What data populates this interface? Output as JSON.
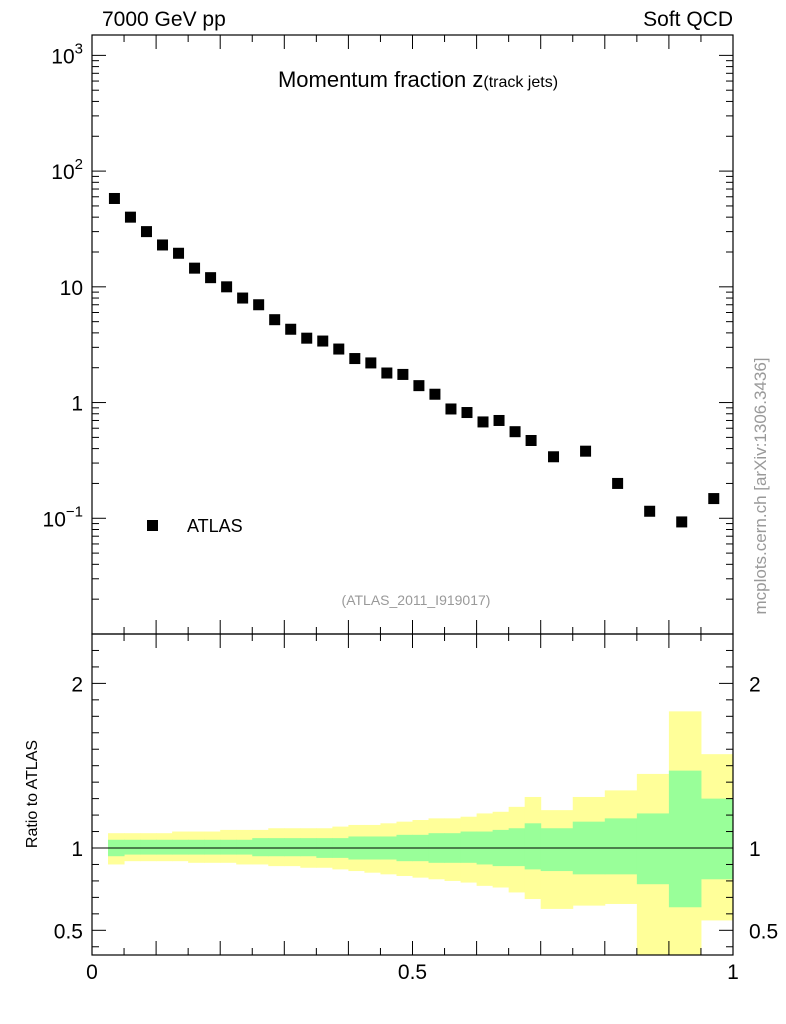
{
  "header": {
    "energy": "7000 GeV pp",
    "process": "Soft QCD"
  },
  "side_label": "mcplots.cern.ch [arXiv:1306.3436]",
  "chart_data": [
    {
      "type": "scatter",
      "title": "Momentum fraction z",
      "title_sub": "(track jets)",
      "yscale": "log",
      "xlim": [
        0,
        1
      ],
      "ylim": [
        0.01,
        1500
      ],
      "y_tick_labels": [
        {
          "value": 1000,
          "base": "10",
          "exp": "3"
        },
        {
          "value": 100,
          "base": "10",
          "exp": "2"
        },
        {
          "value": 10,
          "label": "10"
        },
        {
          "value": 1,
          "label": "1"
        },
        {
          "value": 0.1,
          "base": "10",
          "exp": "−1"
        }
      ],
      "legend": [
        {
          "name": "ATLAS",
          "marker": "square"
        }
      ],
      "legend_position": "bottom-left",
      "analysis_tag": "(ATLAS_2011_I919017)",
      "series": [
        {
          "name": "ATLAS",
          "x": [
            0.035,
            0.06,
            0.085,
            0.11,
            0.135,
            0.16,
            0.185,
            0.21,
            0.235,
            0.26,
            0.285,
            0.31,
            0.335,
            0.36,
            0.385,
            0.41,
            0.435,
            0.46,
            0.485,
            0.51,
            0.535,
            0.56,
            0.585,
            0.61,
            0.635,
            0.66,
            0.685,
            0.72,
            0.77,
            0.82,
            0.87,
            0.92,
            0.97
          ],
          "y": [
            58,
            40,
            30,
            23,
            19.5,
            14.5,
            12,
            10,
            8,
            7,
            5.2,
            4.3,
            3.6,
            3.4,
            2.9,
            2.4,
            2.2,
            1.8,
            1.75,
            1.4,
            1.18,
            0.88,
            0.82,
            0.68,
            0.7,
            0.56,
            0.47,
            0.34,
            0.38,
            0.2,
            0.115,
            0.093,
            0.148
          ]
        }
      ]
    },
    {
      "type": "area",
      "ylabel": "Ratio to ATLAS",
      "xlim": [
        0,
        1
      ],
      "ylim": [
        0.35,
        2.3
      ],
      "x_tick_labels": [
        {
          "value": 0,
          "label": "0"
        },
        {
          "value": 0.5,
          "label": "0.5"
        },
        {
          "value": 1,
          "label": "1"
        }
      ],
      "y_tick_labels": [
        {
          "value": 0.5,
          "label": "0.5"
        },
        {
          "value": 1,
          "label": "1"
        },
        {
          "value": 2,
          "label": "2"
        }
      ],
      "reference_line": 1,
      "bin_edges": [
        0.025,
        0.05,
        0.075,
        0.1,
        0.125,
        0.15,
        0.175,
        0.2,
        0.225,
        0.25,
        0.275,
        0.3,
        0.325,
        0.35,
        0.375,
        0.4,
        0.425,
        0.45,
        0.475,
        0.5,
        0.525,
        0.55,
        0.575,
        0.6,
        0.625,
        0.65,
        0.675,
        0.7,
        0.75,
        0.8,
        0.85,
        0.9,
        0.95,
        1.0
      ],
      "bands": [
        {
          "name": "total uncertainty",
          "color": "#ffff99",
          "lo": [
            0.9,
            0.92,
            0.92,
            0.92,
            0.92,
            0.91,
            0.91,
            0.91,
            0.9,
            0.9,
            0.89,
            0.89,
            0.88,
            0.88,
            0.87,
            0.86,
            0.85,
            0.84,
            0.83,
            0.82,
            0.81,
            0.8,
            0.79,
            0.77,
            0.76,
            0.73,
            0.69,
            0.63,
            0.65,
            0.66,
            0.35,
            0.3,
            0.56
          ],
          "hi": [
            1.09,
            1.09,
            1.09,
            1.09,
            1.1,
            1.1,
            1.1,
            1.11,
            1.11,
            1.11,
            1.12,
            1.12,
            1.12,
            1.12,
            1.13,
            1.14,
            1.14,
            1.15,
            1.16,
            1.17,
            1.18,
            1.18,
            1.19,
            1.21,
            1.22,
            1.25,
            1.31,
            1.23,
            1.31,
            1.35,
            1.45,
            1.83,
            1.57
          ]
        },
        {
          "name": "statistical uncertainty",
          "color": "#99ff99",
          "lo": [
            0.95,
            0.96,
            0.96,
            0.96,
            0.96,
            0.96,
            0.96,
            0.96,
            0.96,
            0.95,
            0.95,
            0.95,
            0.95,
            0.94,
            0.94,
            0.93,
            0.93,
            0.93,
            0.92,
            0.92,
            0.91,
            0.91,
            0.91,
            0.9,
            0.89,
            0.89,
            0.87,
            0.86,
            0.84,
            0.84,
            0.78,
            0.64,
            0.81
          ],
          "hi": [
            1.05,
            1.05,
            1.05,
            1.05,
            1.05,
            1.05,
            1.05,
            1.05,
            1.05,
            1.06,
            1.06,
            1.06,
            1.06,
            1.06,
            1.06,
            1.07,
            1.07,
            1.07,
            1.08,
            1.08,
            1.09,
            1.09,
            1.1,
            1.1,
            1.11,
            1.12,
            1.15,
            1.12,
            1.16,
            1.18,
            1.21,
            1.47,
            1.3
          ]
        }
      ]
    }
  ]
}
